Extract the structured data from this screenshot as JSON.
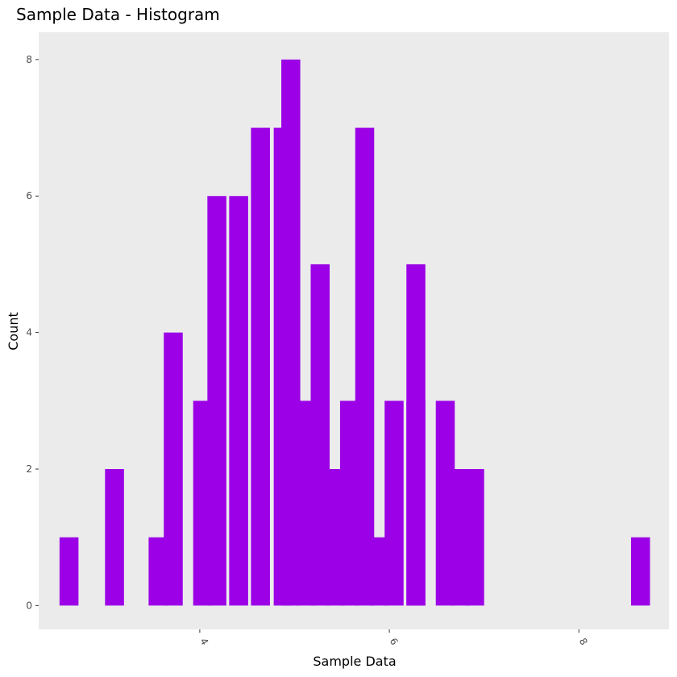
{
  "chart_data": {
    "type": "bar",
    "title": "Sample Data - Histogram",
    "xlabel": "Sample Data",
    "ylabel": "Count",
    "bin_width": 0.2,
    "bins": [
      {
        "x_start": 2.52,
        "count": 1
      },
      {
        "x_start": 2.72,
        "count": 0
      },
      {
        "x_start": 2.92,
        "count": 0
      },
      {
        "x_start": 3.0,
        "count": 2
      },
      {
        "x_start": 3.46,
        "count": 1
      },
      {
        "x_start": 3.62,
        "count": 4
      },
      {
        "x_start": 3.93,
        "count": 3
      },
      {
        "x_start": 4.08,
        "count": 6
      },
      {
        "x_start": 4.31,
        "count": 6
      },
      {
        "x_start": 4.54,
        "count": 7
      },
      {
        "x_start": 4.78,
        "count": 7
      },
      {
        "x_start": 4.86,
        "count": 8
      },
      {
        "x_start": 5.02,
        "count": 3
      },
      {
        "x_start": 5.17,
        "count": 5
      },
      {
        "x_start": 5.33,
        "count": 2
      },
      {
        "x_start": 5.48,
        "count": 3
      },
      {
        "x_start": 5.64,
        "count": 7
      },
      {
        "x_start": 5.79,
        "count": 1
      },
      {
        "x_start": 5.95,
        "count": 3
      },
      {
        "x_start": 6.18,
        "count": 3
      },
      {
        "x_start": 6.18,
        "count": 5
      },
      {
        "x_start": 6.49,
        "count": 3
      },
      {
        "x_start": 6.65,
        "count": 2
      },
      {
        "x_start": 6.8,
        "count": 2
      },
      {
        "x_start": 8.55,
        "count": 1
      }
    ],
    "xlim": [
      2.3,
      8.95
    ],
    "ylim": [
      -0.35,
      8.4
    ],
    "xticks": [
      4,
      6,
      8
    ],
    "yticks": [
      0,
      2,
      4,
      6,
      8
    ],
    "bar_color": "#9b00e6",
    "panel_color": "#ebebeb",
    "grid": false,
    "legend": "none"
  }
}
